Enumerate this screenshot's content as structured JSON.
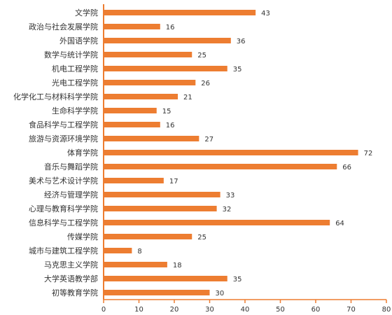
{
  "chart_data": {
    "type": "bar",
    "orientation": "horizontal",
    "categories": [
      "文学院",
      "政治与社会发展学院",
      "外国语学院",
      "数学与统计学院",
      "机电工程学院",
      "光电工程学院",
      "化学化工与材料科学学院",
      "生命科学学院",
      "食品科学与工程学院",
      "旅游与资源环境学院",
      "体育学院",
      "音乐与舞蹈学院",
      "美术与艺术设计学院",
      "经济与管理学院",
      "心理与教育科学学院",
      "信息科学与工程学院",
      "传媒学院",
      "城市与建筑工程学院",
      "马克思主义学院",
      "大学英语教学部",
      "初等教育学院"
    ],
    "values": [
      43,
      16,
      36,
      25,
      35,
      26,
      21,
      15,
      16,
      27,
      72,
      66,
      17,
      33,
      32,
      64,
      25,
      8,
      18,
      35,
      30
    ],
    "xlim": [
      0,
      80
    ],
    "xticks": [
      0,
      10,
      20,
      30,
      40,
      50,
      60,
      70,
      80
    ],
    "bar_color": "#ED7D31",
    "axis_color": "#ED7D31",
    "grid": false,
    "data_labels": true,
    "title": "",
    "xlabel": "",
    "ylabel": ""
  }
}
